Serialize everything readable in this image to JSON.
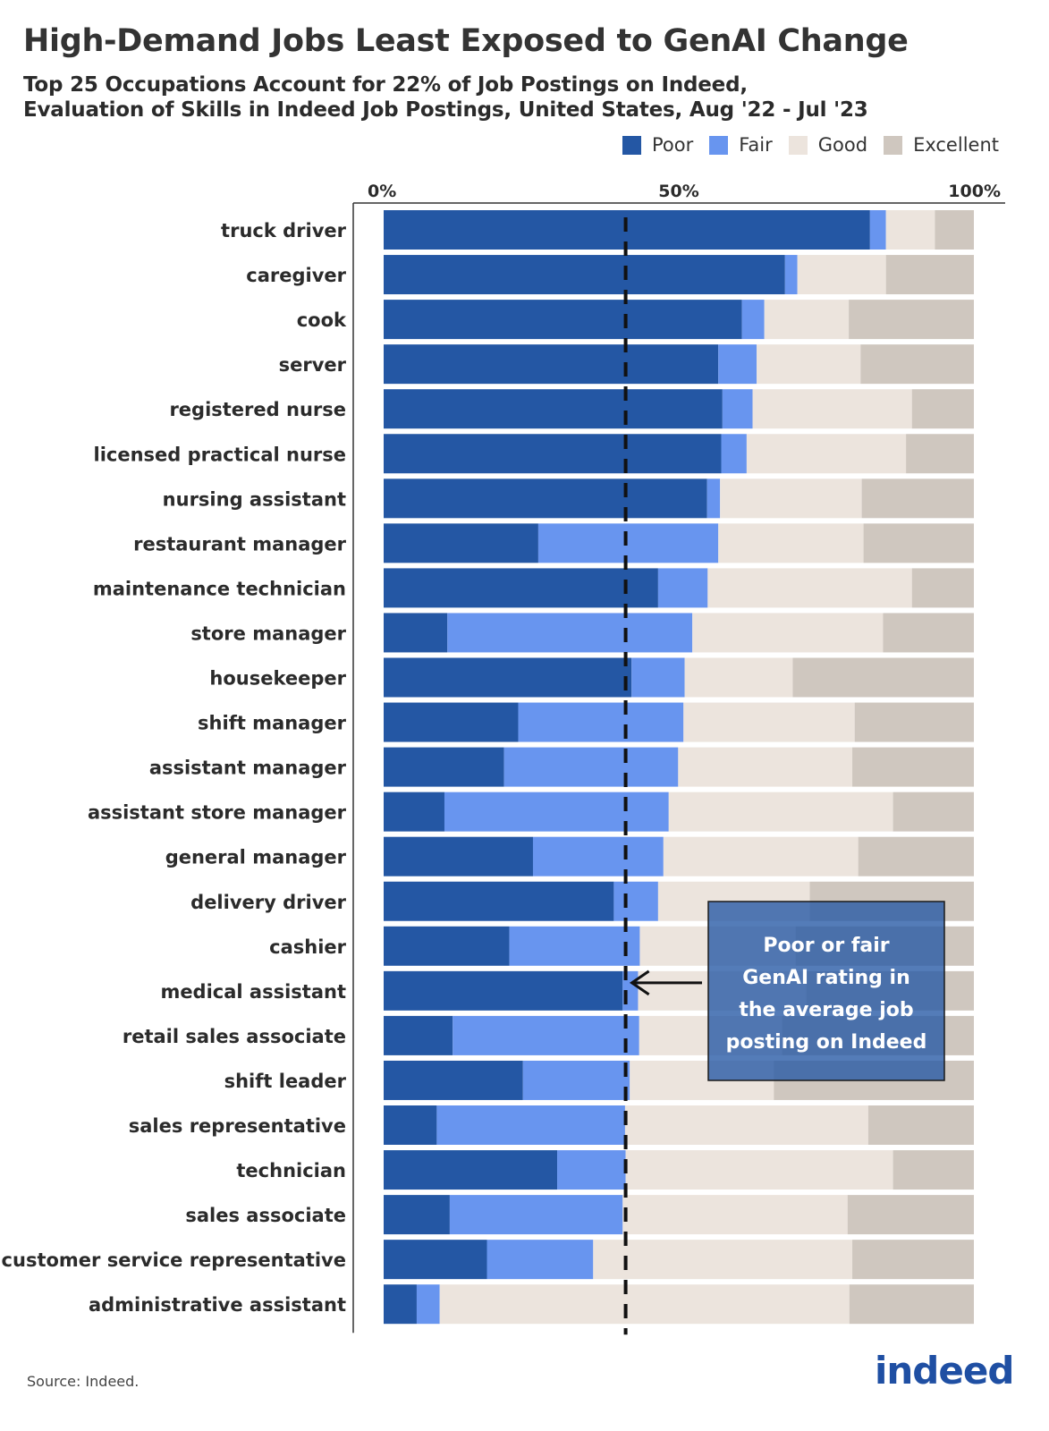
{
  "title": "High-Demand Jobs Least Exposed to GenAI Change",
  "subtitle_line1": "Top 25 Occupations Account for 22% of Job Postings on Indeed,",
  "subtitle_line2": "Evaluation of Skills in Indeed Job Postings, United States, Aug '22 - Jul '23",
  "source": "Source: Indeed.",
  "logo_text": "indeed",
  "colors": {
    "poor": "#2457a4",
    "fair": "#6895ef",
    "good": "#ece4dd",
    "excellent": "#cfc7bf",
    "logo": "#1f4fa3"
  },
  "legend": [
    {
      "label": "Poor",
      "color": "#2457a4"
    },
    {
      "label": "Fair",
      "color": "#6895ef"
    },
    {
      "label": "Good",
      "color": "#ece4dd"
    },
    {
      "label": "Excellent",
      "color": "#cfc7bf"
    }
  ],
  "annotation": {
    "lines": [
      "Poor or fair",
      "GenAI rating in",
      "the average job",
      "posting on Indeed"
    ],
    "reference_value": 41
  },
  "chart_data": {
    "type": "bar",
    "orientation": "horizontal",
    "stacked": true,
    "xlim": [
      0,
      100
    ],
    "x_ticks": [
      "0%",
      "50%",
      "100%"
    ],
    "x_tick_values": [
      0,
      50,
      100
    ],
    "legend_position": "top-right",
    "categories": [
      "truck driver",
      "caregiver",
      "cook",
      "server",
      "registered nurse",
      "licensed practical nurse",
      "nursing assistant",
      "restaurant manager",
      "maintenance technician",
      "store manager",
      "housekeeper",
      "shift manager",
      "assistant manager",
      "assistant store manager",
      "general manager",
      "delivery driver",
      "cashier",
      "medical assistant",
      "retail sales associate",
      "shift leader",
      "sales representative",
      "technician",
      "sales associate",
      "customer service representative",
      "administrative assistant"
    ],
    "series": [
      {
        "name": "Poor",
        "values": [
          82.4,
          68.0,
          60.7,
          56.7,
          57.4,
          57.2,
          54.8,
          26.2,
          46.5,
          10.8,
          42.0,
          22.8,
          20.4,
          10.3,
          25.3,
          39.0,
          21.3,
          40.5,
          11.7,
          23.6,
          9.0,
          29.4,
          11.2,
          17.5,
          5.6
        ]
      },
      {
        "name": "Fair",
        "values": [
          2.7,
          2.1,
          3.8,
          6.5,
          5.1,
          4.3,
          2.2,
          30.5,
          8.4,
          41.5,
          9.0,
          28.0,
          29.5,
          38.0,
          22.1,
          7.5,
          22.1,
          2.6,
          31.6,
          18.1,
          31.9,
          11.6,
          29.3,
          18.0,
          3.9
        ]
      },
      {
        "name": "Good",
        "values": [
          8.3,
          15.0,
          14.3,
          17.6,
          27.0,
          27.0,
          24.0,
          24.6,
          34.6,
          32.3,
          18.3,
          29.0,
          29.5,
          38.0,
          33.0,
          25.7,
          26.4,
          28.5,
          24.2,
          24.4,
          41.2,
          45.3,
          38.1,
          43.9,
          69.4
        ]
      },
      {
        "name": "Excellent",
        "values": [
          6.6,
          14.9,
          21.2,
          19.2,
          10.5,
          11.5,
          19.0,
          18.7,
          10.5,
          15.4,
          30.7,
          20.2,
          20.6,
          13.7,
          19.6,
          27.8,
          30.2,
          28.4,
          32.5,
          33.9,
          17.9,
          13.7,
          21.4,
          20.6,
          21.1
        ]
      }
    ]
  }
}
